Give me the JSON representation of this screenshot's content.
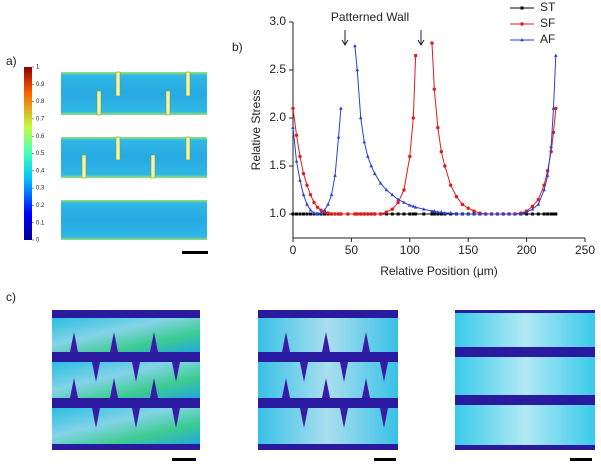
{
  "panel_labels": [
    "a)",
    "b)",
    "c)"
  ],
  "colorbar": {
    "ticks": [
      1,
      0.9,
      0.8,
      0.7,
      0.6,
      0.5,
      0.4,
      0.3,
      0.2,
      0.1,
      0
    ]
  },
  "chart_data": {
    "type": "line",
    "annotation": "Patterned Wall",
    "x_label": "Relative Position (μm)",
    "y_label": "Relative Stress",
    "x": [
      0,
      3,
      6,
      9,
      12,
      15,
      18,
      21,
      24,
      27,
      30,
      33,
      36,
      39,
      41,
      47,
      53,
      55,
      58,
      61,
      64,
      67,
      70,
      75,
      80,
      85,
      90,
      95,
      100,
      103,
      105,
      112,
      119,
      121,
      124,
      127,
      130,
      135,
      140,
      145,
      150,
      155,
      160,
      165,
      170,
      175,
      180,
      185,
      190,
      195,
      200,
      205,
      210,
      215,
      218,
      221,
      223,
      225
    ],
    "series": [
      {
        "name": "ST",
        "color": "#000000",
        "marker": "square",
        "values": [
          1,
          1,
          1,
          1,
          1,
          1,
          1,
          1,
          1,
          1,
          1,
          1,
          1,
          1,
          1,
          1,
          1,
          1,
          1,
          1,
          1,
          1,
          1,
          1,
          1,
          1,
          1,
          1,
          1,
          1,
          1,
          1,
          1,
          1,
          1,
          1,
          1,
          1,
          1,
          1,
          1,
          1,
          1,
          1,
          1,
          1,
          1,
          1,
          1,
          1,
          1,
          1,
          1,
          1,
          1,
          1,
          1,
          1
        ]
      },
      {
        "name": "SF",
        "color": "#e31a1c",
        "marker": "circle",
        "values": [
          2.1,
          1.82,
          1.6,
          1.42,
          1.3,
          1.2,
          1.12,
          1.07,
          1.04,
          1.02,
          1.01,
          1,
          1,
          1,
          1,
          1,
          1,
          1,
          1,
          1,
          1,
          1,
          1,
          1,
          1.02,
          1.05,
          1.12,
          1.25,
          1.6,
          2.0,
          2.65,
          null,
          2.78,
          2.3,
          1.9,
          1.65,
          1.5,
          1.3,
          1.18,
          1.1,
          1.06,
          1.03,
          1.01,
          1,
          1,
          1,
          1,
          1,
          1,
          1.01,
          1.03,
          1.08,
          1.15,
          1.3,
          1.45,
          1.65,
          1.85,
          2.1
        ]
      },
      {
        "name": "AF",
        "color": "#2b3fd6",
        "marker": "triangle",
        "values": [
          1.9,
          1.55,
          1.35,
          1.2,
          1.1,
          1.04,
          1.01,
          1.0,
          1.01,
          1.04,
          1.1,
          1.2,
          1.4,
          1.8,
          2.1,
          null,
          2.75,
          2.5,
          2.0,
          1.75,
          1.6,
          1.5,
          1.42,
          1.32,
          1.25,
          1.2,
          1.15,
          1.12,
          1.09,
          1.08,
          1.07,
          1.05,
          1.03,
          1.03,
          1.02,
          1.02,
          1.01,
          1.01,
          1,
          1,
          1,
          1,
          1,
          1,
          1,
          1,
          1,
          1,
          1,
          1,
          1.02,
          1.05,
          1.1,
          1.25,
          1.4,
          1.7,
          2.1,
          2.65
        ]
      }
    ],
    "xlim": [
      0,
      250
    ],
    "xticks": [
      0,
      50,
      100,
      150,
      200,
      250
    ],
    "ylim": [
      0.75,
      3.0
    ],
    "yticks": [
      {
        "value": 1,
        "label": "1.0"
      },
      1.5,
      {
        "value": 2,
        "label": "2.0"
      },
      2.5,
      {
        "value": 3,
        "label": "3.0"
      }
    ],
    "legend": "top-right"
  }
}
